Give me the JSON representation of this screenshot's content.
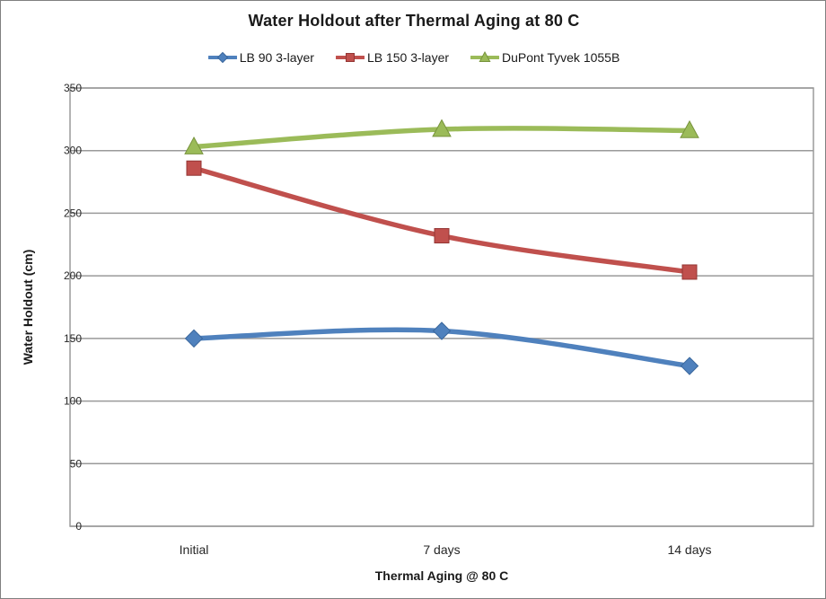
{
  "window": {
    "background": "#ffffff",
    "border_color": "#808080"
  },
  "chart_data": {
    "type": "line",
    "title": "Water Holdout after Thermal Aging at 80 C",
    "categories": [
      "Initial",
      "7 days",
      "14 days"
    ],
    "series": [
      {
        "name": "LB 90 3-layer",
        "marker": "diamond",
        "color": "#4F81BD",
        "edge": "#3A679D",
        "values": [
          150,
          156,
          128
        ]
      },
      {
        "name": "LB 150 3-layer",
        "marker": "square",
        "color": "#C0504D",
        "edge": "#943634",
        "values": [
          286,
          232,
          203
        ]
      },
      {
        "name": "DuPont Tyvek 1055B",
        "marker": "triangle",
        "color": "#9BBB59",
        "edge": "#77933C",
        "values": [
          303,
          317,
          316
        ]
      }
    ],
    "xlabel": "Thermal Aging @  80 C",
    "ylabel": "Water Holdout (cm)",
    "ylim": [
      0,
      350
    ],
    "ytick_step": 50,
    "grid": true,
    "smoothed": true,
    "legend_position": "top",
    "gridline_color": "#9a9a9a",
    "tick_label_color": "#262626",
    "title_color": "#1a1a1a"
  }
}
